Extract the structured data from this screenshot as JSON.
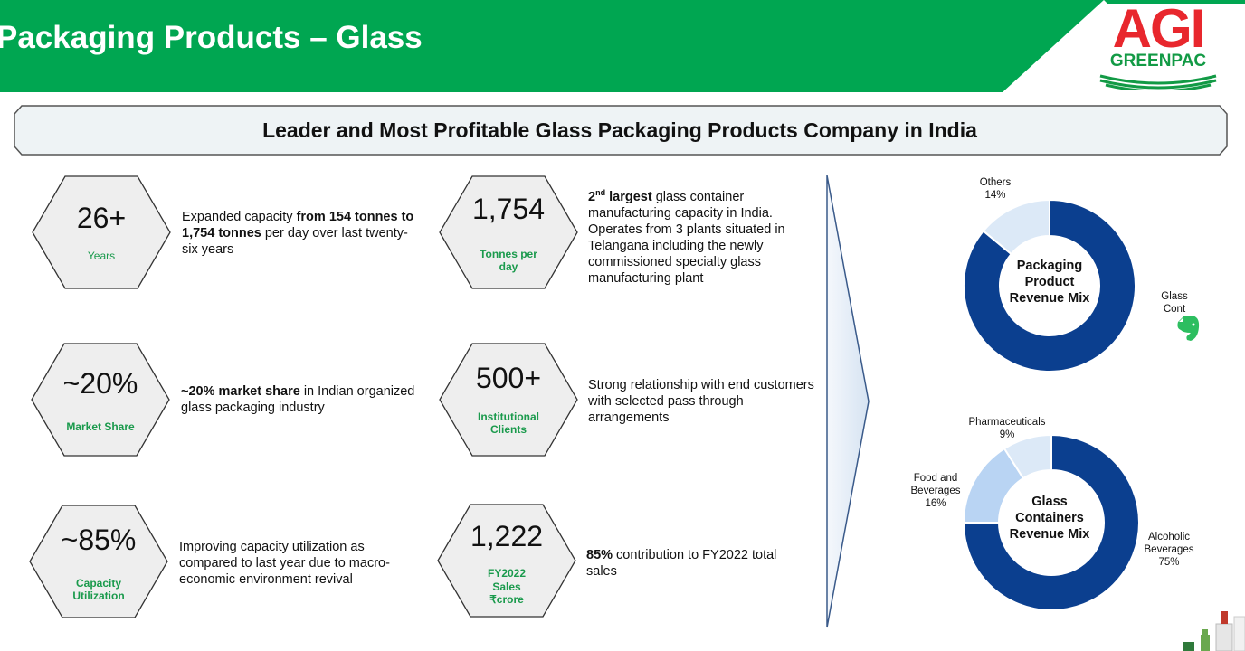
{
  "header": {
    "title": "Packaging Products – Glass",
    "logo_main": "AGI",
    "logo_sub": "GREENPAC"
  },
  "banner": {
    "text": "Leader and Most Profitable Glass Packaging Products Company in India"
  },
  "metrics": [
    {
      "value": "26+",
      "caption": "Years",
      "desc_parts": [
        "Expanded capacity ",
        "from 154 tonnes to 1,754 tonnes",
        " per day over last twenty-six years"
      ]
    },
    {
      "value": "~20%",
      "caption": "Market Share",
      "desc_parts": [
        "~20% market share",
        " in Indian organized glass packaging industry"
      ]
    },
    {
      "value": "~85%",
      "caption": "Capacity Utilization",
      "desc_parts": [
        "Improving capacity utilization as compared to last year due to macro-economic environment revival"
      ]
    },
    {
      "value": "1,754",
      "caption": "Tonnes per day",
      "desc_parts": [
        "2",
        "nd",
        " largest",
        " glass container manufacturing capacity in India. Operates from 3 plants situated in Telangana including the newly commissioned specialty glass manufacturing plant"
      ]
    },
    {
      "value": "500+",
      "caption": "Institutional Clients",
      "desc_parts": [
        "Strong relationship with end customers with selected pass through arrangements"
      ]
    },
    {
      "value": "1,222",
      "caption_lines": [
        "FY2022",
        "Sales",
        "₹crore"
      ],
      "desc_parts": [
        "85%",
        " contribution to FY2022 total sales"
      ]
    }
  ],
  "chart_data": [
    {
      "type": "pie",
      "title": "Packaging Product Revenue Mix",
      "categories": [
        "Glass Containers",
        "Others"
      ],
      "values": [
        86,
        14
      ],
      "labels": [
        {
          "name": "Glass Cont",
          "value": ""
        },
        {
          "name": "Others",
          "value": "14%"
        }
      ],
      "colors": [
        "#0b3f8f",
        "#dce9f7"
      ]
    },
    {
      "type": "pie",
      "title": "Glass Containers Revenue Mix",
      "categories": [
        "Alcoholic Beverages",
        "Food and Beverages",
        "Pharmaceuticals"
      ],
      "values": [
        75,
        16,
        9
      ],
      "labels": [
        {
          "name": "Alcoholic Beverages",
          "value": "75%"
        },
        {
          "name": "Food and Beverages",
          "value": "16%"
        },
        {
          "name": "Pharmaceuticals",
          "value": "9%"
        }
      ],
      "colors": [
        "#0b3f8f",
        "#b9d4f3",
        "#dce9f7"
      ]
    }
  ],
  "colors": {
    "brand_green": "#00a651",
    "accent_green": "#1a9a4c",
    "logo_red": "#e8272d",
    "donut_dark": "#0b3f8f"
  }
}
